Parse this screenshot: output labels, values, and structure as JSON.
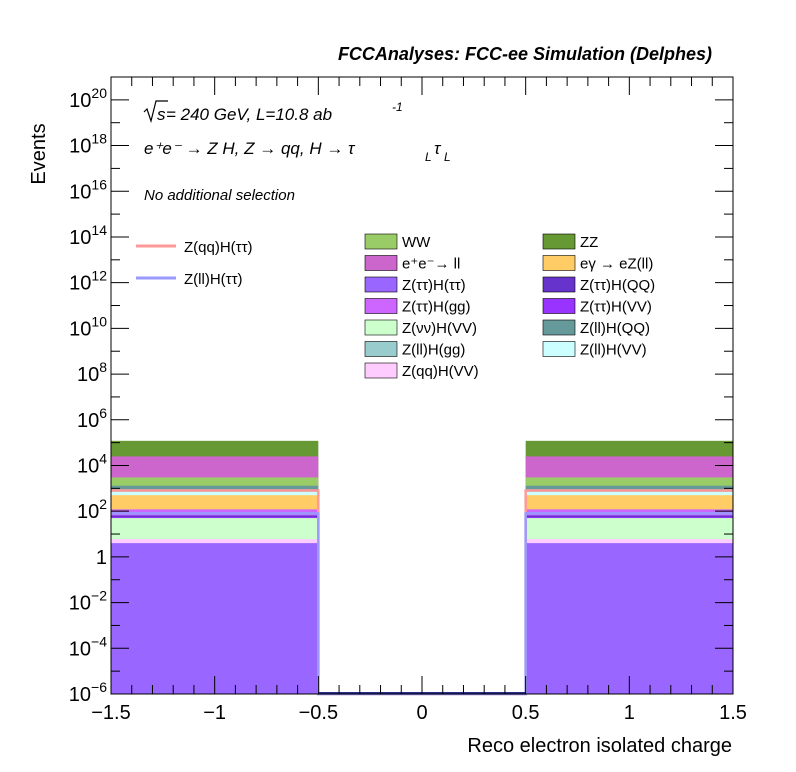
{
  "header": {
    "title": "FCCAnalyses: FCC-ee Simulation (Delphes)",
    "energy_sqrt": "s",
    "energy_text": " = 240 GeV, L=10.8 ab",
    "energy_exp": "-1",
    "process_text": "e⁺e⁻ → Z H, Z → qq, H → τ",
    "process_sub1": "L",
    "process_tau": "τ",
    "process_sub2": "L",
    "selection": "No additional selection"
  },
  "chart_data": {
    "type": "bar",
    "xlabel": "Reco electron isolated charge",
    "ylabel": "Events",
    "xlim": [
      -1.5,
      1.5
    ],
    "ylim": [
      1e-06,
      1e+21
    ],
    "yscale": "log",
    "xticks": [
      "−1.5",
      "−1",
      "−0.5",
      "0",
      "0.5",
      "1",
      "1.5"
    ],
    "yticks": [
      {
        "base": "10",
        "exp": "−6"
      },
      {
        "base": "10",
        "exp": "−4"
      },
      {
        "base": "10",
        "exp": "−2"
      },
      {
        "base": "1",
        "exp": ""
      },
      {
        "base": "10",
        "exp": "2"
      },
      {
        "base": "10",
        "exp": "4"
      },
      {
        "base": "10",
        "exp": "6"
      },
      {
        "base": "10",
        "exp": "8"
      },
      {
        "base": "10",
        "exp": "10"
      },
      {
        "base": "10",
        "exp": "12"
      },
      {
        "base": "10",
        "exp": "14"
      },
      {
        "base": "10",
        "exp": "16"
      },
      {
        "base": "10",
        "exp": "18"
      },
      {
        "base": "10",
        "exp": "20"
      }
    ],
    "bins": [
      [
        -1.5,
        -0.5
      ],
      [
        -0.5,
        0.5
      ],
      [
        0.5,
        1.5
      ]
    ],
    "stack": [
      {
        "name": "Z(ττ)H(ττ)",
        "color": "#9966ff",
        "cumulative": [
          4,
          1e-06,
          4
        ]
      },
      {
        "name": "Z(qq)H(VV)",
        "color": "#ffccff",
        "cumulative": [
          6,
          1e-06,
          6
        ]
      },
      {
        "name": "Z(νν)H(VV)",
        "color": "#ccffcc",
        "cumulative": [
          50,
          1e-06,
          50
        ]
      },
      {
        "name": "Z(ττ)H(VV)",
        "color": "#9933ff",
        "cumulative": [
          55,
          1e-06,
          55
        ]
      },
      {
        "name": "Z(ττ)H(QQ)",
        "color": "#6633cc",
        "cumulative": [
          65,
          1e-06,
          65
        ]
      },
      {
        "name": "Z(ττ)H(gg)",
        "color": "#cc66ff",
        "cumulative": [
          120,
          1e-06,
          120
        ]
      },
      {
        "name": "eγ → eZ(ll)",
        "color": "#ffcc66",
        "cumulative": [
          500,
          1e-06,
          500
        ]
      },
      {
        "name": "Z(ll)H(VV)",
        "color": "#ccffff",
        "cumulative": [
          700,
          1e-06,
          700
        ]
      },
      {
        "name": "Z(ll)H(gg)",
        "color": "#99cccc",
        "cumulative": [
          900,
          1e-06,
          900
        ]
      },
      {
        "name": "Z(ll)H(QQ)",
        "color": "#669999",
        "cumulative": [
          1300,
          1e-06,
          1300
        ]
      },
      {
        "name": "WW",
        "color": "#99cc66",
        "cumulative": [
          3000,
          1e-06,
          3000
        ]
      },
      {
        "name": "e⁺e⁻→ ll",
        "color": "#cc66cc",
        "cumulative": [
          25000,
          1e-06,
          25000
        ]
      },
      {
        "name": "ZZ",
        "color": "#669933",
        "cumulative": [
          120000,
          1e-06,
          120000
        ]
      }
    ],
    "signals": [
      {
        "name": "Z(qq)H(ττ)",
        "color": "#ff9999",
        "values": [
          800,
          1e-06,
          800
        ]
      },
      {
        "name": "Z(ll)H(ττ)",
        "color": "#9999ff",
        "values": [
          80,
          1e-06,
          80
        ]
      }
    ],
    "legend_columns": [
      [
        "WW",
        "e⁺e⁻→ ll",
        "Z(ττ)H(ττ)",
        "Z(ττ)H(gg)",
        "Z(νν)H(VV)",
        "Z(ll)H(gg)",
        "Z(qq)H(VV)"
      ],
      [
        "ZZ",
        "eγ → eZ(ll)",
        "Z(ττ)H(QQ)",
        "Z(ττ)H(VV)",
        "Z(ll)H(QQ)",
        "Z(ll)H(VV)"
      ]
    ]
  }
}
